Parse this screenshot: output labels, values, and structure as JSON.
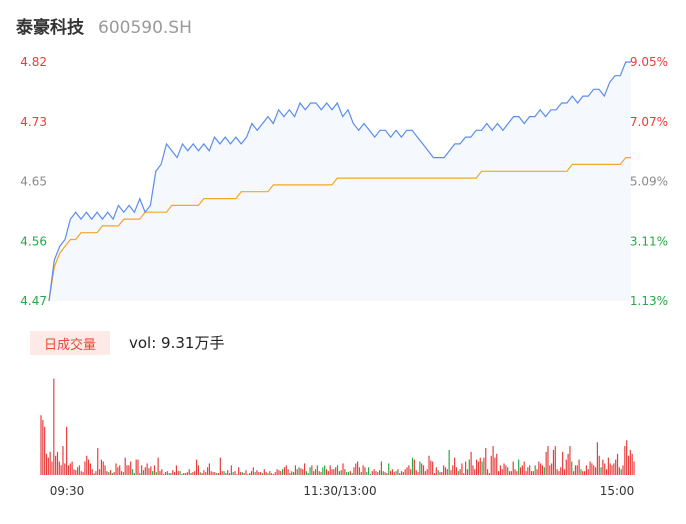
{
  "header": {
    "name": "泰豪科技",
    "code": "600590.SH"
  },
  "volume_panel": {
    "tag": "日成交量",
    "readout": "vol: 9.31万手"
  },
  "colors": {
    "price_line": "#5b8def",
    "avg_line": "#f5a623",
    "up": "#e83d3d",
    "down": "#27a844",
    "area_fill": "#f5f8fd"
  },
  "chart_data": [
    {
      "type": "line",
      "title": "",
      "y_left_ticks": [
        "4.82",
        "4.73",
        "4.65",
        "4.56",
        "4.47"
      ],
      "y_right_ticks": [
        "9.05%",
        "7.07%",
        "5.09%",
        "3.11%",
        "1.13%"
      ],
      "ylim": [
        4.47,
        4.82
      ],
      "x_ticks": [
        "09:30",
        "11:30/13:00",
        "15:00"
      ],
      "series": [
        {
          "key": "price",
          "values": [
            4.47,
            4.53,
            4.55,
            4.56,
            4.59,
            4.6,
            4.59,
            4.6,
            4.59,
            4.6,
            4.59,
            4.6,
            4.59,
            4.61,
            4.6,
            4.61,
            4.6,
            4.62,
            4.6,
            4.61,
            4.66,
            4.67,
            4.7,
            4.69,
            4.68,
            4.7,
            4.69,
            4.7,
            4.69,
            4.7,
            4.69,
            4.71,
            4.7,
            4.71,
            4.7,
            4.71,
            4.7,
            4.71,
            4.73,
            4.72,
            4.73,
            4.74,
            4.73,
            4.75,
            4.74,
            4.75,
            4.74,
            4.76,
            4.75,
            4.76,
            4.76,
            4.75,
            4.76,
            4.75,
            4.76,
            4.74,
            4.75,
            4.73,
            4.72,
            4.73,
            4.72,
            4.71,
            4.72,
            4.72,
            4.71,
            4.72,
            4.71,
            4.72,
            4.72,
            4.71,
            4.7,
            4.69,
            4.68,
            4.68,
            4.68,
            4.69,
            4.7,
            4.7,
            4.71,
            4.71,
            4.72,
            4.72,
            4.73,
            4.72,
            4.73,
            4.72,
            4.73,
            4.74,
            4.74,
            4.73,
            4.74,
            4.74,
            4.75,
            4.74,
            4.75,
            4.75,
            4.76,
            4.76,
            4.77,
            4.76,
            4.77,
            4.77,
            4.78,
            4.78,
            4.77,
            4.79,
            4.8,
            4.8,
            4.82,
            4.82
          ]
        },
        {
          "key": "average",
          "values": [
            4.47,
            4.52,
            4.54,
            4.55,
            4.56,
            4.56,
            4.57,
            4.57,
            4.57,
            4.57,
            4.58,
            4.58,
            4.58,
            4.58,
            4.59,
            4.59,
            4.59,
            4.59,
            4.6,
            4.6,
            4.6,
            4.6,
            4.6,
            4.61,
            4.61,
            4.61,
            4.61,
            4.61,
            4.61,
            4.62,
            4.62,
            4.62,
            4.62,
            4.62,
            4.62,
            4.62,
            4.63,
            4.63,
            4.63,
            4.63,
            4.63,
            4.63,
            4.64,
            4.64,
            4.64,
            4.64,
            4.64,
            4.64,
            4.64,
            4.64,
            4.64,
            4.64,
            4.64,
            4.64,
            4.65,
            4.65,
            4.65,
            4.65,
            4.65,
            4.65,
            4.65,
            4.65,
            4.65,
            4.65,
            4.65,
            4.65,
            4.65,
            4.65,
            4.65,
            4.65,
            4.65,
            4.65,
            4.65,
            4.65,
            4.65,
            4.65,
            4.65,
            4.65,
            4.65,
            4.65,
            4.65,
            4.66,
            4.66,
            4.66,
            4.66,
            4.66,
            4.66,
            4.66,
            4.66,
            4.66,
            4.66,
            4.66,
            4.66,
            4.66,
            4.66,
            4.66,
            4.66,
            4.66,
            4.67,
            4.67,
            4.67,
            4.67,
            4.67,
            4.67,
            4.67,
            4.67,
            4.67,
            4.67,
            4.68,
            4.68
          ]
        }
      ]
    },
    {
      "type": "bar",
      "title": "",
      "ylim": [
        0,
        110
      ],
      "x_ticks": [
        "09:30",
        "11:30/13:00",
        "15:00"
      ],
      "values": [
        62,
        57,
        50,
        22,
        18,
        24,
        14,
        100,
        20,
        24,
        14,
        10,
        30,
        12,
        50,
        10,
        12,
        14,
        6,
        5,
        8,
        10,
        4,
        3,
        14,
        20,
        16,
        12,
        6,
        2,
        4,
        28,
        6,
        16,
        14,
        10,
        4,
        3,
        5,
        2,
        3,
        12,
        8,
        10,
        4,
        3,
        18,
        10,
        10,
        14,
        6,
        2,
        16,
        16,
        2,
        10,
        5,
        8,
        12,
        7,
        9,
        4,
        10,
        3,
        18,
        4,
        6,
        1,
        3,
        4,
        2,
        2,
        5,
        3,
        10,
        4,
        4,
        1,
        2,
        2,
        3,
        6,
        2,
        3,
        4,
        16,
        10,
        3,
        2,
        5,
        3,
        8,
        12,
        4,
        3,
        3,
        2,
        2,
        18,
        4,
        4,
        2,
        5,
        2,
        10,
        3,
        4,
        1,
        8,
        3,
        3,
        2,
        5,
        1,
        2,
        4,
        8,
        3,
        5,
        3,
        3,
        2,
        6,
        3,
        2,
        4,
        2,
        1,
        3,
        6,
        5,
        4,
        6,
        8,
        10,
        6,
        2,
        4,
        3,
        10,
        6,
        8,
        7,
        6,
        12,
        4,
        2,
        8,
        10,
        4,
        6,
        10,
        4,
        3,
        8,
        10,
        6,
        4,
        10,
        6,
        6,
        8,
        10,
        4,
        5,
        12,
        6,
        3,
        3,
        4,
        2,
        8,
        12,
        14,
        8,
        3,
        10,
        8,
        3,
        8,
        1,
        4,
        6,
        4,
        3,
        5,
        14,
        4,
        3,
        2,
        12,
        4,
        6,
        3,
        4,
        6,
        2,
        4,
        3,
        6,
        8,
        10,
        6,
        18,
        16,
        5,
        3,
        14,
        12,
        10,
        4,
        6,
        20,
        15,
        14,
        2,
        8,
        5,
        3,
        3,
        10,
        8,
        6,
        26,
        5,
        10,
        18,
        8,
        4,
        6,
        12,
        2,
        14,
        6,
        16,
        24,
        10,
        6,
        16,
        14,
        18,
        14,
        18,
        28,
        6,
        2,
        20,
        30,
        18,
        22,
        4,
        10,
        6,
        12,
        10,
        8,
        4,
        4,
        14,
        6,
        4,
        16,
        8,
        10,
        14,
        4,
        8,
        10,
        4,
        4,
        10,
        6,
        14,
        12,
        10,
        8,
        24,
        30,
        10,
        12,
        26,
        30,
        6,
        4,
        8,
        24,
        6,
        16,
        22,
        30,
        14,
        4,
        10,
        10,
        16,
        6,
        4,
        4,
        10,
        6,
        14,
        12,
        10,
        8,
        34,
        20,
        8,
        16,
        12,
        6,
        18,
        12,
        10,
        12,
        16,
        22,
        8,
        6,
        10,
        30,
        36,
        20,
        26,
        22,
        14
      ],
      "colors": [
        "u",
        "u",
        "u",
        "u",
        "u",
        "u",
        "u",
        "u",
        "u",
        "u",
        "u",
        "u",
        "u",
        "u",
        "u",
        "u",
        "u",
        "u",
        "u",
        "u",
        "u",
        "d",
        "u",
        "u",
        "u",
        "u",
        "u",
        "u",
        "u",
        "d",
        "u",
        "u",
        "u",
        "u",
        "u",
        "u",
        "u",
        "d",
        "u",
        "d",
        "u",
        "u",
        "u",
        "u",
        "u",
        "d",
        "u",
        "u",
        "u",
        "u",
        "d",
        "d",
        "u",
        "u",
        "d",
        "u",
        "d",
        "u",
        "u",
        "u",
        "u",
        "d",
        "u",
        "d",
        "u",
        "u",
        "u",
        "d",
        "u",
        "u",
        "d",
        "d",
        "u",
        "u",
        "u",
        "u",
        "d",
        "d",
        "u",
        "u",
        "u",
        "u",
        "d",
        "u",
        "u",
        "u",
        "u",
        "d",
        "u",
        "u",
        "u",
        "u",
        "u",
        "u",
        "u",
        "u",
        "d",
        "u",
        "u",
        "u",
        "d",
        "u",
        "u",
        "d",
        "u",
        "d",
        "u",
        "u",
        "u",
        "u",
        "d",
        "u",
        "u",
        "d",
        "u",
        "u",
        "u",
        "d",
        "u",
        "u",
        "u",
        "d",
        "u",
        "u",
        "d",
        "u",
        "d",
        "u",
        "u",
        "u",
        "u",
        "u",
        "d",
        "u",
        "u",
        "u",
        "u",
        "d",
        "u",
        "u",
        "u",
        "d",
        "u",
        "u",
        "u",
        "d",
        "d",
        "d",
        "u",
        "u",
        "u",
        "d",
        "u",
        "u",
        "d",
        "d",
        "u",
        "u",
        "u",
        "u",
        "u",
        "u",
        "d",
        "u",
        "d",
        "u",
        "u",
        "d",
        "d",
        "u",
        "d",
        "u",
        "u",
        "u",
        "d",
        "u",
        "u",
        "u",
        "d",
        "d",
        "d",
        "u",
        "u",
        "u",
        "d",
        "u",
        "u",
        "d",
        "u",
        "u",
        "d",
        "u",
        "u",
        "u",
        "d",
        "u",
        "d",
        "u",
        "u",
        "u",
        "u",
        "u",
        "u",
        "d",
        "u",
        "u",
        "u",
        "d",
        "u",
        "u",
        "u",
        "u",
        "u",
        "u",
        "u",
        "u",
        "u",
        "d",
        "u",
        "u",
        "u",
        "u",
        "u",
        "d",
        "u",
        "u",
        "u",
        "u",
        "d",
        "u",
        "u",
        "u",
        "u",
        "u",
        "d",
        "u",
        "u",
        "u",
        "u",
        "u",
        "u",
        "d",
        "u",
        "u",
        "u",
        "u",
        "u",
        "u",
        "u",
        "u",
        "u",
        "u",
        "u",
        "u",
        "u",
        "d",
        "u",
        "u",
        "u",
        "u",
        "u",
        "d",
        "u",
        "u",
        "u",
        "u",
        "u",
        "u",
        "u",
        "u",
        "d",
        "u",
        "u",
        "u",
        "u",
        "d",
        "u",
        "u",
        "u",
        "u",
        "u",
        "u",
        "u",
        "u",
        "u",
        "u",
        "u",
        "u",
        "u",
        "u",
        "d",
        "u",
        "u",
        "u",
        "u",
        "d",
        "u",
        "u",
        "u",
        "u",
        "u",
        "u",
        "u",
        "u",
        "u",
        "u",
        "d",
        "u",
        "u",
        "u",
        "u",
        "u",
        "u",
        "u",
        "u",
        "u",
        "u",
        "d"
      ]
    }
  ]
}
